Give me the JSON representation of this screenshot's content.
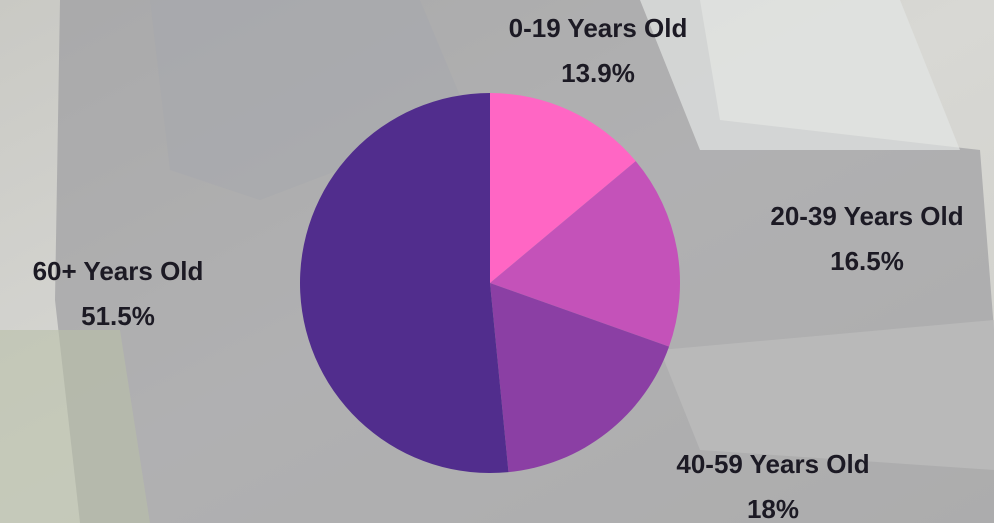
{
  "chart_data": {
    "type": "pie",
    "categories": [
      "0-19 Years Old",
      "20-39 Years Old",
      "40-59 Years Old",
      "60+ Years Old"
    ],
    "values": [
      13.9,
      16.5,
      18,
      51.5
    ],
    "value_labels": [
      "13.9%",
      "16.5%",
      "18%",
      "51.5%"
    ],
    "colors": [
      "#ff66c4",
      "#c452b9",
      "#8b3fa4",
      "#512d8d"
    ]
  }
}
